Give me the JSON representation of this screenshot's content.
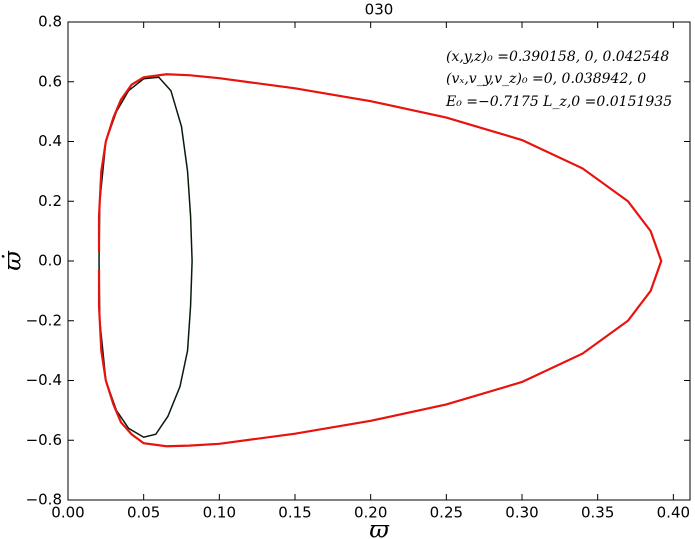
{
  "chart_data": {
    "type": "line",
    "title": "030",
    "x_label": "ϖ",
    "y_label": "ϖ̇",
    "annotations": [
      "(x,y,z)₀ =0.390158, 0, 0.042548",
      "(vₓ,v_y,v_z)₀ =0, 0.038942, 0",
      "E₀ =−0.7175  L_z,0 =0.0151935"
    ],
    "xlim": [
      0,
      0.411
    ],
    "ylim": [
      -0.8,
      0.8
    ],
    "xticks": [
      {
        "value": 0,
        "label": "0.00"
      },
      {
        "value": 0.05,
        "label": "0.05"
      },
      {
        "value": 0.1,
        "label": "0.10"
      },
      {
        "value": 0.15,
        "label": "0.15"
      },
      {
        "value": 0.2,
        "label": "0.20"
      },
      {
        "value": 0.25,
        "label": "0.25"
      },
      {
        "value": 0.3,
        "label": "0.30"
      },
      {
        "value": 0.35,
        "label": "0.35"
      },
      {
        "value": 0.4,
        "label": "0.40"
      }
    ],
    "yticks": [
      {
        "value": -0.8,
        "label": "−0.8"
      },
      {
        "value": -0.6,
        "label": "−0.6"
      },
      {
        "value": -0.4,
        "label": "−0.4"
      },
      {
        "value": -0.2,
        "label": "−0.2"
      },
      {
        "value": 0,
        "label": "0.0"
      },
      0.2,
      0.4,
      0.6,
      0.8
    ],
    "grid": false,
    "series": [
      {
        "color": "#0a1a0a",
        "x": [
          0.0205,
          0.021,
          0.025,
          0.032,
          0.04,
          0.05,
          0.06,
          0.068,
          0.075,
          0.079,
          0.081,
          0.082,
          0.081,
          0.079,
          0.074,
          0.066,
          0.058,
          0.05,
          0.04,
          0.032,
          0.025,
          0.021,
          0.0205
        ],
        "values": [
          0,
          0.2,
          0.4,
          0.5,
          0.57,
          0.61,
          0.615,
          0.57,
          0.45,
          0.3,
          0.15,
          0,
          -0.15,
          -0.3,
          -0.42,
          -0.52,
          -0.58,
          -0.59,
          -0.56,
          -0.5,
          -0.4,
          -0.2,
          0
        ]
      },
      {
        "color": "#e8120e",
        "x": [
          0.0205,
          0.0205,
          0.022,
          0.025,
          0.03,
          0.035,
          0.042,
          0.05,
          0.065,
          0.08,
          0.1,
          0.15,
          0.2,
          0.25,
          0.3,
          0.34,
          0.37,
          0.385,
          0.392,
          0.385,
          0.37,
          0.34,
          0.3,
          0.25,
          0.2,
          0.15,
          0.1,
          0.08,
          0.065,
          0.05,
          0.042,
          0.035,
          0.03,
          0.025,
          0.022,
          0.0205,
          0.0205
        ],
        "values": [
          0.03,
          0.15,
          0.3,
          0.4,
          0.48,
          0.54,
          0.59,
          0.615,
          0.625,
          0.622,
          0.612,
          0.578,
          0.535,
          0.48,
          0.405,
          0.31,
          0.2,
          0.1,
          0,
          -0.1,
          -0.2,
          -0.31,
          -0.405,
          -0.48,
          -0.535,
          -0.578,
          -0.612,
          -0.618,
          -0.62,
          -0.61,
          -0.58,
          -0.54,
          -0.48,
          -0.4,
          -0.3,
          -0.15,
          -0.03
        ]
      }
    ]
  }
}
